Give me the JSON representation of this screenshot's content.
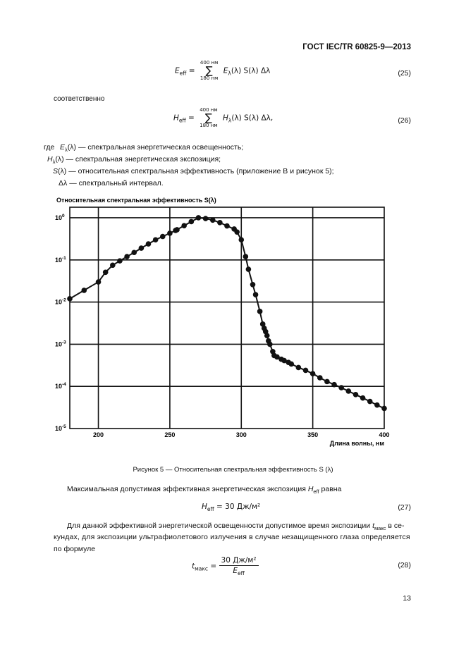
{
  "header": "ГОСТ IEC/TR 60825-9—2013",
  "eq25": {
    "lhs": "E",
    "lhs_sub": "eff",
    "upper": "400 нм",
    "lower": "180 нм",
    "rhs": "E",
    "rhs_sub": "λ",
    "rhs_tail": "(λ) S(λ) Δλ",
    "number": "(25)"
  },
  "respectively": "соответственно",
  "eq26": {
    "lhs": "H",
    "lhs_sub": "eff",
    "upper": "400 нм",
    "lower": "180 нм",
    "rhs": "H",
    "rhs_sub": "λ",
    "rhs_tail": "(λ) S(λ) Δλ,",
    "number": "(26)"
  },
  "definitions": {
    "where": "где",
    "items": [
      {
        "sym": "E",
        "sub": "λ",
        "tail": "(λ)",
        "text": "— спектральная энергетическая освещенность;"
      },
      {
        "sym": "H",
        "sub": "λ",
        "tail": "(λ)",
        "text": "— спектральная энергетическая экспозиция;"
      },
      {
        "sym": "S",
        "sub": "",
        "tail": "(λ)",
        "text": "— относительная спектральная эффективность (приложение В и рисунок 5);"
      },
      {
        "sym": "Δλ",
        "sub": "",
        "tail": "",
        "text": "— спектральный интервал."
      }
    ]
  },
  "chart_data": {
    "type": "line",
    "title": "Относительная спектральная эффективность S(λ)",
    "xlabel": "Длина волны, нм",
    "ylabel": "",
    "xlim": [
      180,
      400
    ],
    "ylim": [
      1e-05,
      1.78
    ],
    "yscale": "log",
    "grid": true,
    "xticks": [
      "200",
      "250",
      "300",
      "350",
      "400"
    ],
    "yticks": [
      {
        "base": "10",
        "exp": "0"
      },
      {
        "base": "10",
        "exp": "-1"
      },
      {
        "base": "10",
        "exp": "-2"
      },
      {
        "base": "10",
        "exp": "-3"
      },
      {
        "base": "10",
        "exp": "-4"
      },
      {
        "base": "10",
        "exp": "-5"
      }
    ],
    "series": [
      {
        "name": "S(λ)",
        "x": [
          180,
          190,
          200,
          205,
          210,
          215,
          220,
          225,
          230,
          235,
          240,
          245,
          250,
          254,
          255,
          260,
          265,
          270,
          275,
          280,
          285,
          290,
          295,
          297,
          300,
          303,
          305,
          308,
          310,
          313,
          315,
          316,
          317,
          318,
          319,
          320,
          322,
          323,
          325,
          328,
          330,
          333,
          335,
          340,
          345,
          350,
          355,
          360,
          365,
          370,
          375,
          380,
          385,
          390,
          395,
          400
        ],
        "y": [
          0.012,
          0.019,
          0.03,
          0.051,
          0.075,
          0.095,
          0.12,
          0.15,
          0.19,
          0.24,
          0.3,
          0.36,
          0.43,
          0.5,
          0.52,
          0.65,
          0.81,
          1.0,
          0.96,
          0.88,
          0.77,
          0.64,
          0.54,
          0.46,
          0.3,
          0.12,
          0.06,
          0.026,
          0.015,
          0.006,
          0.003,
          0.0024,
          0.002,
          0.0016,
          0.0012,
          0.001,
          0.00067,
          0.00054,
          0.0005,
          0.00044,
          0.00041,
          0.00037,
          0.00034,
          0.00028,
          0.00024,
          0.0002,
          0.00016,
          0.00013,
          0.00011,
          9.3e-05,
          7.7e-05,
          6.4e-05,
          5.3e-05,
          4.4e-05,
          3.6e-05,
          3e-05
        ]
      }
    ]
  },
  "caption": "Рисунок 5 — Относительная спектральная эффективность S (λ)",
  "para1": {
    "text": "Максимальная допустимая эффективная энергетическая экспозиция",
    "sym": "H",
    "sub": "eff",
    "tail": "равна"
  },
  "eq27": {
    "lhs": "H",
    "lhs_sub": "eff",
    "rhs": "= 30 Дж/м²",
    "number": "(27)"
  },
  "para2": {
    "line1": "Для данной эффективной энергетической освещенности допустимое время экспозиции",
    "sym": "t",
    "sub": "макс",
    "line1_tail": "в се-",
    "line2": "кундах, для экспозиции ультрафиолетового излучения в случае незащищенного глаза определяется",
    "line3": "по формуле"
  },
  "eq28": {
    "lhs": "t",
    "lhs_sub": "макс",
    "num": "30 Дж/м²",
    "den": "E",
    "den_sub": "eff",
    "number": "(28)"
  },
  "page_number": "13"
}
